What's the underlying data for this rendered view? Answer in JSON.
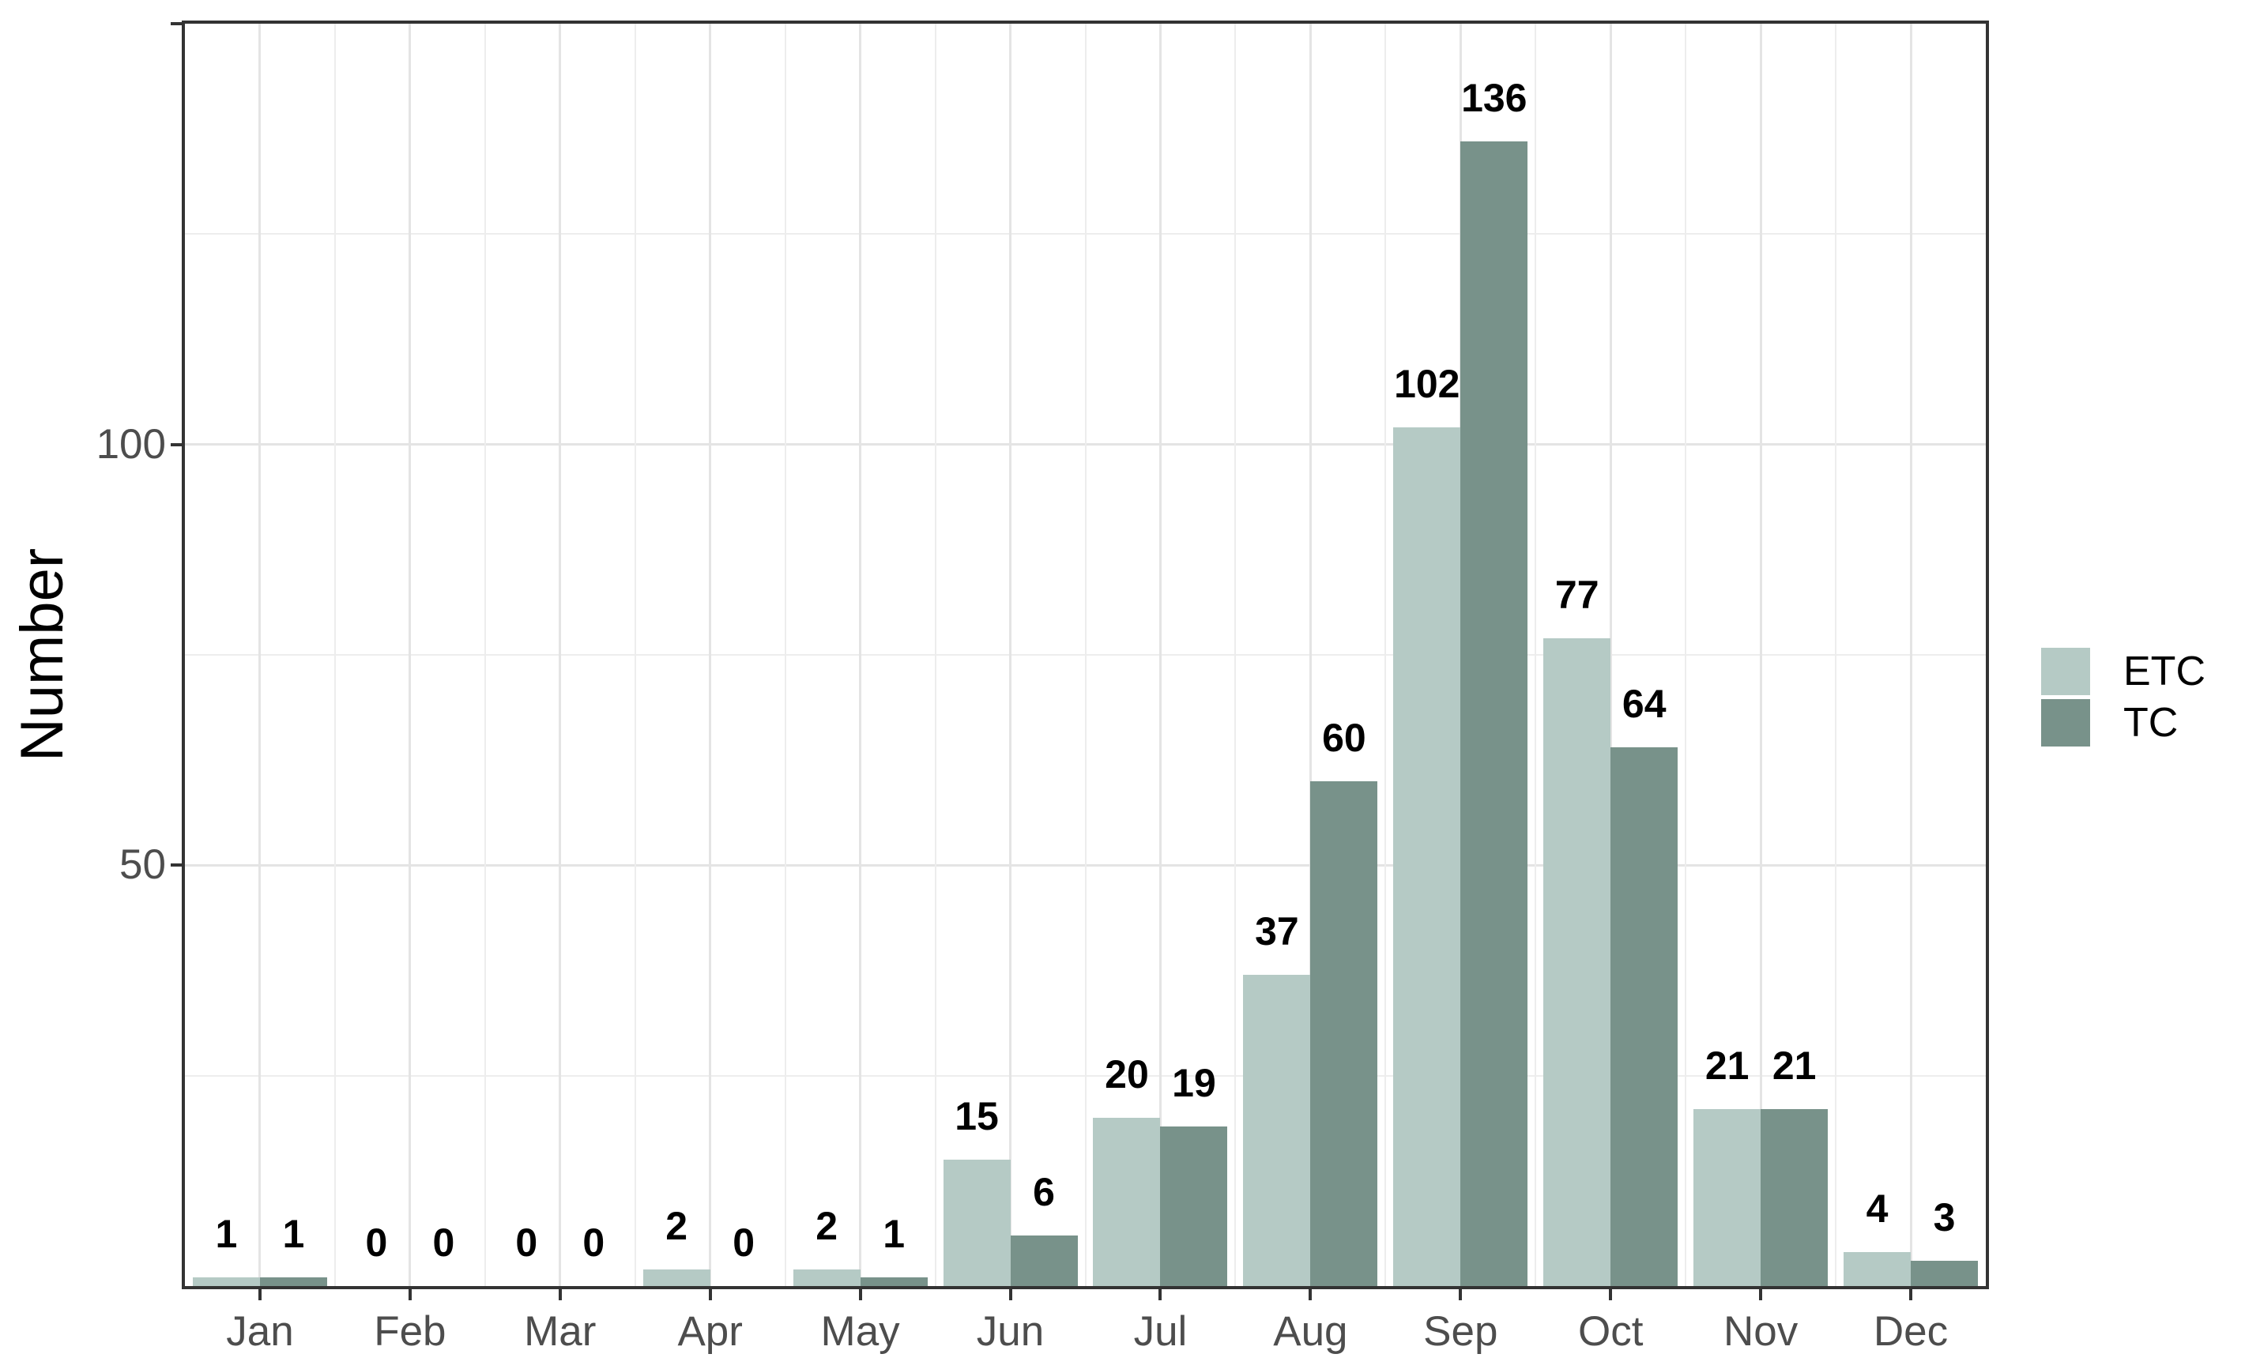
{
  "chart_data": {
    "type": "bar",
    "title": "",
    "categories": [
      "Jan",
      "Feb",
      "Mar",
      "Apr",
      "May",
      "Jun",
      "Jul",
      "Aug",
      "Sep",
      "Oct",
      "Nov",
      "Dec"
    ],
    "series": [
      {
        "name": "ETC",
        "color": "#b5cac5",
        "values": [
          1,
          0,
          0,
          2,
          2,
          15,
          20,
          37,
          102,
          77,
          21,
          4
        ]
      },
      {
        "name": "TC",
        "color": "#78928a",
        "values": [
          1,
          0,
          0,
          0,
          1,
          6,
          19,
          60,
          136,
          64,
          21,
          3
        ]
      }
    ],
    "xlabel": "",
    "ylabel": "Number",
    "ylim": [
      0,
      150
    ],
    "yticks": [
      {
        "value": 50,
        "label": "50"
      },
      {
        "value": 100,
        "label": "100"
      },
      {
        "value": 150,
        "label": ""
      }
    ],
    "grid": {
      "horizontal_major": [
        50,
        100
      ],
      "horizontal_minor": [
        25,
        75,
        125
      ],
      "vertical": "major at month centers, minor at month boundaries"
    },
    "bar_value_labels": true,
    "legend": {
      "position": "right",
      "entries": [
        "ETC",
        "TC"
      ]
    }
  },
  "colors": {
    "etc_fill": "#b5cac5",
    "tc_fill": "#78928a",
    "axis_line": "#333333",
    "tick_label_text": "#4d4d4d",
    "axis_title_text": "#000000",
    "value_label_text": "#000000",
    "grid_major": "#e4e4e4",
    "grid_minor": "#ededed",
    "background": "#ffffff"
  }
}
